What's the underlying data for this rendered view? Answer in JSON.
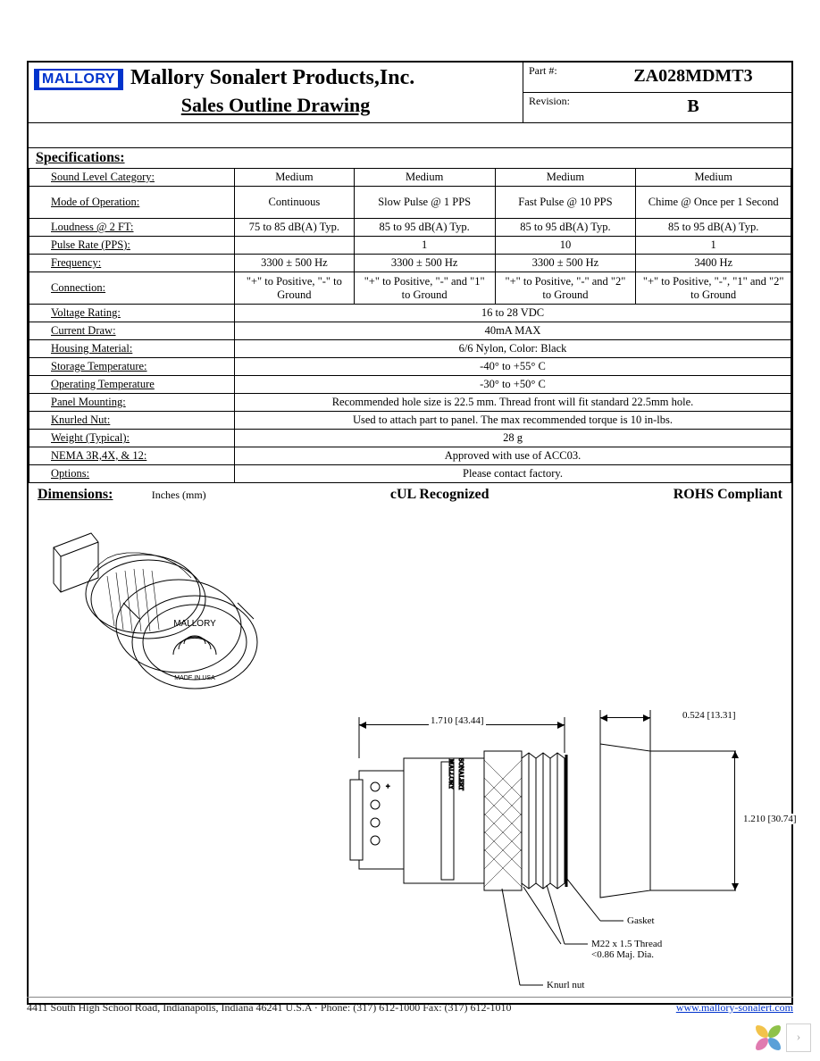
{
  "header": {
    "logo_text": "MALLORY",
    "company": "Mallory Sonalert Products,Inc.",
    "subtitle": "Sales Outline Drawing",
    "part_label": "Part #:",
    "part_value": "ZA028MDMT3",
    "rev_label": "Revision:",
    "rev_value": "B"
  },
  "specs": {
    "section_title": "Specifications:",
    "rows": [
      {
        "label": "Sound Level Category:",
        "cols": [
          "Medium",
          "Medium",
          "Medium",
          "Medium"
        ]
      },
      {
        "label": "Mode of Operation:",
        "cols": [
          "Continuous",
          "Slow Pulse @ 1 PPS",
          "Fast Pulse @ 10 PPS",
          "Chime @ Once per 1 Second"
        ],
        "tall": true
      },
      {
        "label": "Loudness @ 2 FT:",
        "cols": [
          "75 to 85 dB(A) Typ.",
          "85 to 95 dB(A) Typ.",
          "85 to 95 dB(A) Typ.",
          "85 to 95 dB(A) Typ."
        ]
      },
      {
        "label": "Pulse Rate (PPS):",
        "cols": [
          "",
          "1",
          "10",
          "1"
        ]
      },
      {
        "label": "Frequency:",
        "cols": [
          "3300 ± 500 Hz",
          "3300 ± 500 Hz",
          "3300 ± 500 Hz",
          "3400 Hz"
        ]
      },
      {
        "label": "Connection:",
        "cols": [
          "\"+\" to Positive, \"-\" to Ground",
          "\"+\" to Positive, \"-\" and \"1\" to Ground",
          "\"+\" to Positive, \"-\" and \"2\" to Ground",
          "\"+\" to Positive, \"-\", \"1\" and \"2\" to Ground"
        ],
        "tall": true
      }
    ],
    "full_rows": [
      {
        "label": "Voltage Rating:",
        "val": "16 to 28 VDC"
      },
      {
        "label": "Current Draw:",
        "val": "40mA MAX"
      },
      {
        "label": "Housing Material:",
        "val": "6/6 Nylon, Color: Black"
      },
      {
        "label": "Storage Temperature:",
        "val": "-40° to +55° C"
      },
      {
        "label": "Operating Temperature",
        "val": "-30° to +50° C"
      },
      {
        "label": "Panel Mounting:",
        "val": "Recommended hole size is 22.5 mm. Thread front will fit standard 22.5mm hole."
      },
      {
        "label": "Knurled Nut:",
        "val": "Used to attach part to panel. The max recommended torque is 10 in-lbs."
      },
      {
        "label": "Weight (Typical):",
        "val": "28 g"
      },
      {
        "label": "NEMA 3R,4X, & 12:",
        "val": "Approved with use of ACC03."
      },
      {
        "label": "Options:",
        "val": "Please contact factory."
      }
    ]
  },
  "dimensions": {
    "title": "Dimensions:",
    "units": "Inches (mm)",
    "center": "cUL Recognized",
    "right": "ROHS Compliant",
    "dim_length": "1.710 [43.44]",
    "dim_front": "0.524 [13.31]",
    "dim_dia": "1.210 [30.74]",
    "callout_gasket": "Gasket",
    "callout_thread_l1": "M22 x 1.5 Thread",
    "callout_thread_l2": "<0.86 Maj. Dia.",
    "callout_knurl": "Knurl nut",
    "face_brand": "MALLORY",
    "face_made": "MADE IN USA",
    "side_brand": "MALLORY",
    "side_brand2_color": "#d01818",
    "side_brand2": "SONALERT"
  },
  "footer": {
    "address": "4411 South High School Road, Indianapolis, Indiana 46241 U.S.A · Phone: (317) 612-1000 Fax: (317) 612-1010",
    "url": "www.mallory-sonalert.com"
  },
  "widget": {
    "colors": [
      "#f2c34b",
      "#8fc24a",
      "#e07bb0",
      "#5aa0d8"
    ]
  }
}
